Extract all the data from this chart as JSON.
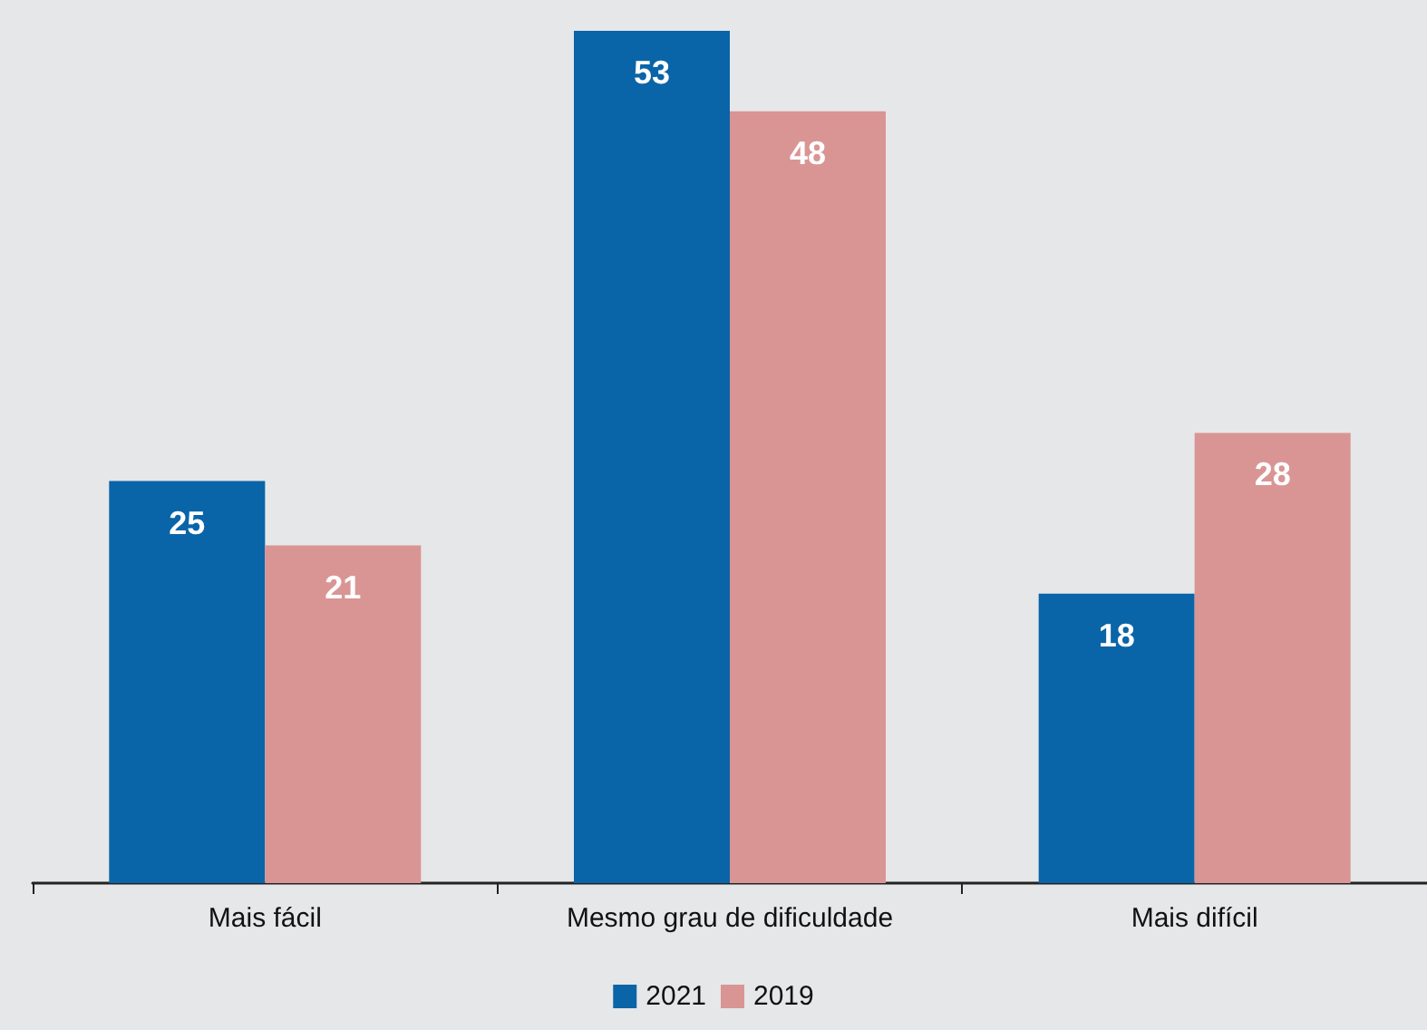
{
  "chart_data": {
    "type": "bar",
    "categories": [
      "Mais fácil",
      "Mesmo grau de dificuldade",
      "Mais difícil"
    ],
    "series": [
      {
        "name": "2021",
        "color": "#0a64a8",
        "values": [
          25,
          53,
          18
        ]
      },
      {
        "name": "2019",
        "color": "#d99594",
        "values": [
          21,
          48,
          28
        ]
      }
    ],
    "data_labels": true,
    "legend": "bottom"
  }
}
